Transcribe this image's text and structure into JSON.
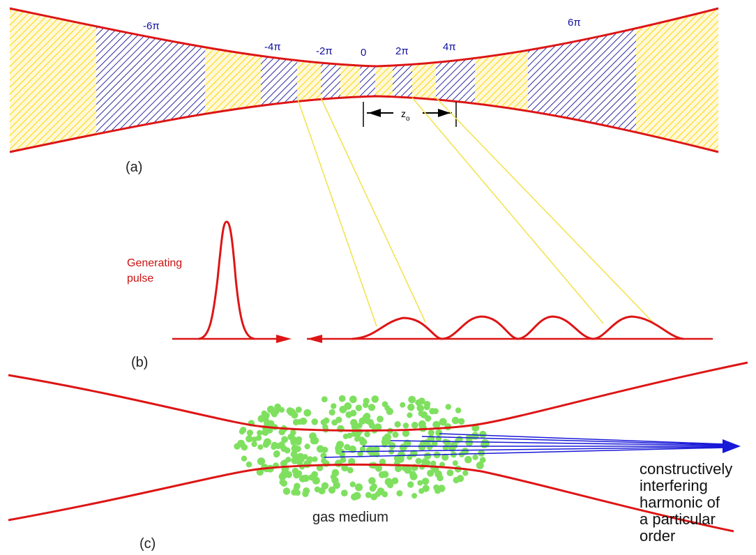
{
  "colors": {
    "beam": "#dd1515",
    "yellow_zone": "#ffe97a",
    "blue_zone": "#2a2aa0",
    "light_lines": "#f2e24a",
    "gas": "#7fe060",
    "harmonic": "#1818d8"
  },
  "panel_a": {
    "label": "(a)",
    "phase_labels": [
      "-6π",
      "-4π",
      "-2π",
      "0",
      "2π",
      "4π",
      "6π"
    ],
    "z_label": "z",
    "z_subscript": "o"
  },
  "panel_b": {
    "label": "(b)",
    "pulse_label_line1": "Generating",
    "pulse_label_line2": "pulse"
  },
  "panel_c": {
    "label": "(c)",
    "gas_label": "gas medium",
    "harmonic_lines": [
      "constructively",
      "interfering",
      "harmonic of",
      "a particular",
      "order"
    ]
  }
}
